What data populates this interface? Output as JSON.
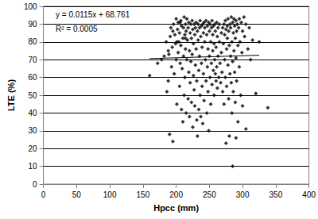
{
  "chart_data": {
    "type": "scatter",
    "x_label": "Hpcc (mm)",
    "y_label": "LTE (%)",
    "annotations": [
      "y = 0.0115x + 68.761",
      "R² = 0.0005"
    ],
    "xlim": [
      0,
      400
    ],
    "xticks": [
      0,
      50,
      100,
      150,
      200,
      250,
      300,
      350,
      400
    ],
    "ylim": [
      0,
      100
    ],
    "yticks": [
      0,
      10,
      20,
      30,
      40,
      50,
      60,
      70,
      80,
      90,
      100
    ],
    "grid": true,
    "series": [
      {
        "type": "scatter",
        "color": "#000000",
        "marker": "diamond",
        "x": [
          160,
          172,
          178,
          182,
          185,
          186,
          188,
          189,
          190,
          191,
          192,
          193,
          194,
          195,
          195,
          196,
          197,
          198,
          199,
          200,
          200,
          201,
          202,
          203,
          203,
          204,
          205,
          205,
          206,
          207,
          207,
          208,
          208,
          209,
          210,
          210,
          211,
          211,
          212,
          212,
          213,
          213,
          214,
          214,
          215,
          215,
          216,
          216,
          217,
          218,
          218,
          219,
          219,
          220,
          220,
          221,
          221,
          222,
          222,
          223,
          223,
          224,
          224,
          225,
          225,
          226,
          226,
          227,
          227,
          228,
          228,
          229,
          229,
          230,
          230,
          231,
          231,
          232,
          232,
          233,
          233,
          234,
          234,
          235,
          235,
          236,
          236,
          237,
          237,
          238,
          238,
          239,
          239,
          240,
          240,
          241,
          241,
          242,
          242,
          243,
          243,
          244,
          245,
          245,
          246,
          246,
          247,
          247,
          248,
          248,
          249,
          249,
          250,
          250,
          251,
          251,
          252,
          252,
          253,
          253,
          254,
          254,
          255,
          255,
          256,
          256,
          257,
          257,
          258,
          258,
          259,
          259,
          260,
          260,
          261,
          261,
          262,
          262,
          263,
          263,
          264,
          265,
          265,
          266,
          267,
          268,
          268,
          269,
          270,
          270,
          271,
          272,
          272,
          273,
          273,
          274,
          274,
          275,
          275,
          276,
          276,
          277,
          277,
          278,
          278,
          279,
          279,
          280,
          280,
          281,
          281,
          282,
          282,
          283,
          283,
          284,
          284,
          285,
          285,
          285,
          286,
          286,
          287,
          287,
          288,
          288,
          289,
          289,
          290,
          290,
          290,
          291,
          291,
          292,
          293,
          293,
          294,
          295,
          295,
          296,
          297,
          298,
          299,
          300,
          300,
          302,
          303,
          305,
          305,
          308,
          310,
          312,
          315,
          320,
          325,
          338,
          188,
          201,
          206,
          214
        ],
        "values": [
          61,
          68,
          70,
          72,
          80,
          52,
          58,
          73,
          28,
          83,
          88,
          66,
          77,
          24,
          86,
          90,
          62,
          84,
          79,
          93,
          70,
          45,
          87,
          74,
          91,
          80,
          55,
          85,
          68,
          92,
          78,
          42,
          89,
          65,
          35,
          82,
          88,
          72,
          94,
          50,
          84,
          60,
          90,
          76,
          40,
          86,
          93,
          70,
          81,
          48,
          88,
          63,
          91,
          75,
          38,
          85,
          57,
          90,
          69,
          46,
          82,
          92,
          73,
          32,
          87,
          61,
          79,
          90,
          53,
          84,
          44,
          88,
          67,
          91,
          76,
          36,
          58,
          27,
          86,
          81,
          90,
          64,
          42,
          88,
          72,
          92,
          50,
          83,
          38,
          89,
          68,
          77,
          55,
          90,
          34,
          85,
          62,
          91,
          47,
          80,
          88,
          70,
          92,
          58,
          84,
          40,
          89,
          66,
          76,
          52,
          91,
          30,
          86,
          72,
          60,
          90,
          45,
          80,
          88,
          68,
          92,
          56,
          84,
          75,
          64,
          89,
          50,
          79,
          90,
          70,
          62,
          86,
          58,
          77,
          91,
          66,
          54,
          83,
          72,
          88,
          60,
          80,
          90,
          68,
          57,
          85,
          74,
          63,
          88,
          52,
          79,
          90,
          45,
          84,
          70,
          92,
          60,
          23,
          87,
          76,
          55,
          89,
          82,
          67,
          93,
          48,
          86,
          27,
          78,
          90,
          62,
          88,
          72,
          94,
          57,
          80,
          40,
          10,
          91,
          69,
          85,
          52,
          93,
          75,
          63,
          89,
          82,
          46,
          26,
          92,
          71,
          86,
          58,
          90,
          78,
          35,
          88,
          66,
          93,
          80,
          50,
          91,
          74,
          86,
          44,
          94,
          83,
          31,
          90,
          76,
          88,
          70,
          81,
          51,
          80,
          43,
          75,
          80,
          91,
          82
        ]
      },
      {
        "type": "line",
        "color": "#000000",
        "line_style": "solid",
        "x": [
          160,
          325
        ],
        "values": [
          70.6,
          72.5
        ]
      }
    ]
  }
}
